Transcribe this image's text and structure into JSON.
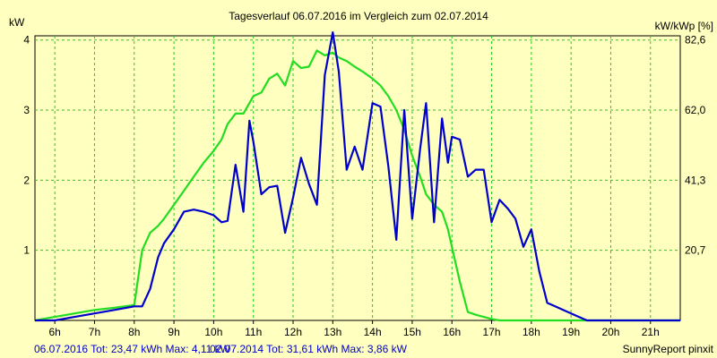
{
  "chart_data": {
    "type": "line",
    "title": "Tagesverlauf 06.07.2016 im Vergleich zum 02.07.2014",
    "ylabel_left": "kW",
    "ylabel_right": "kW/kWp [%]",
    "x_ticks": [
      "6h",
      "7h",
      "8h",
      "9h",
      "10h",
      "11h",
      "12h",
      "13h",
      "14h",
      "15h",
      "16h",
      "17h",
      "18h",
      "19h",
      "20h",
      "21h"
    ],
    "y_ticks_left": [
      "1",
      "2",
      "3",
      "4"
    ],
    "y_ticks_right": [
      "20,7",
      "41,3",
      "62,0",
      "82,6"
    ],
    "xlim": [
      5.5,
      21.75
    ],
    "ylim": [
      0,
      4.06
    ],
    "grid": true,
    "series": [
      {
        "name": "06.07.2016",
        "color": "#0000cc",
        "x": [
          5.5,
          6.0,
          6.5,
          7.0,
          7.5,
          8.0,
          8.2,
          8.4,
          8.6,
          8.75,
          9.0,
          9.25,
          9.5,
          9.75,
          10.0,
          10.2,
          10.35,
          10.55,
          10.75,
          10.9,
          11.0,
          11.2,
          11.4,
          11.6,
          11.8,
          12.0,
          12.2,
          12.4,
          12.6,
          12.8,
          13.0,
          13.15,
          13.35,
          13.55,
          13.75,
          14.0,
          14.2,
          14.4,
          14.6,
          14.8,
          15.0,
          15.2,
          15.35,
          15.55,
          15.75,
          15.9,
          16.0,
          16.2,
          16.4,
          16.6,
          16.8,
          17.0,
          17.2,
          17.4,
          17.6,
          17.8,
          18.0,
          18.2,
          18.4,
          18.6,
          18.8,
          19.0,
          19.2,
          19.4,
          19.6,
          19.8,
          20.0,
          20.2,
          20.4,
          20.6,
          20.8,
          21.0,
          21.2,
          21.4,
          21.75
        ],
        "y": [
          0.0,
          0.0,
          0.05,
          0.1,
          0.15,
          0.2,
          0.2,
          0.45,
          0.9,
          1.1,
          1.3,
          1.55,
          1.58,
          1.55,
          1.5,
          1.4,
          1.42,
          2.22,
          1.55,
          2.85,
          2.55,
          1.8,
          1.9,
          1.92,
          1.25,
          1.75,
          2.32,
          1.95,
          1.65,
          3.5,
          4.11,
          3.55,
          2.15,
          2.48,
          2.15,
          3.1,
          3.05,
          2.2,
          1.15,
          3.0,
          1.45,
          2.45,
          3.1,
          1.4,
          2.88,
          2.25,
          2.62,
          2.58,
          2.05,
          2.15,
          2.15,
          1.4,
          1.72,
          1.6,
          1.45,
          1.05,
          1.3,
          0.7,
          0.25,
          0.2,
          0.15,
          0.1,
          0.05,
          0.0,
          0.0,
          0.0,
          0.0,
          0.0,
          0.0,
          0.0,
          0.0,
          0.0,
          0.0,
          0.0,
          0.0
        ]
      },
      {
        "name": "02.07.2014",
        "color": "#22dd22",
        "x": [
          5.5,
          6.0,
          6.5,
          7.0,
          7.5,
          8.0,
          8.2,
          8.4,
          8.6,
          8.75,
          9.0,
          9.25,
          9.5,
          9.75,
          10.0,
          10.2,
          10.35,
          10.55,
          10.75,
          10.9,
          11.0,
          11.2,
          11.4,
          11.6,
          11.8,
          12.0,
          12.2,
          12.4,
          12.6,
          12.8,
          13.0,
          13.15,
          13.35,
          13.55,
          13.75,
          14.0,
          14.2,
          14.4,
          14.6,
          14.8,
          15.0,
          15.2,
          15.35,
          15.55,
          15.75,
          15.9,
          16.0,
          16.2,
          16.4,
          16.6,
          16.8,
          17.0,
          17.2,
          17.4,
          17.6,
          17.8,
          18.0,
          18.2,
          18.4,
          18.6,
          18.8,
          19.0,
          19.2,
          19.4,
          19.6,
          19.8,
          20.0,
          20.2,
          20.4,
          20.6,
          20.8,
          21.0,
          21.2,
          21.4,
          21.75
        ],
        "y": [
          0.0,
          0.05,
          0.1,
          0.15,
          0.18,
          0.22,
          1.0,
          1.25,
          1.35,
          1.45,
          1.65,
          1.85,
          2.05,
          2.25,
          2.42,
          2.58,
          2.8,
          2.95,
          2.95,
          3.1,
          3.2,
          3.25,
          3.45,
          3.52,
          3.35,
          3.7,
          3.6,
          3.62,
          3.85,
          3.78,
          3.82,
          3.75,
          3.7,
          3.62,
          3.55,
          3.45,
          3.35,
          3.2,
          3.0,
          2.72,
          2.35,
          2.05,
          1.8,
          1.65,
          1.55,
          1.3,
          1.05,
          0.55,
          0.12,
          0.08,
          0.05,
          0.02,
          0.0,
          0.0,
          0.0,
          0.0,
          0.0,
          0.0,
          0.0,
          0.0,
          0.0,
          0.0,
          0.0,
          0.0,
          0.0,
          0.0,
          0.0,
          0.0,
          0.0,
          0.0,
          0.0,
          0.0,
          0.0,
          0.0,
          0.0
        ]
      }
    ]
  },
  "footer": {
    "series1_text": "06.07.2016 Tot: 23,47 kWh Max: 4,11 kW",
    "series2_text": "02.07.2014 Tot: 31,61 kWh Max: 3,86 kW",
    "credit": "SunnyReport pinxit"
  }
}
